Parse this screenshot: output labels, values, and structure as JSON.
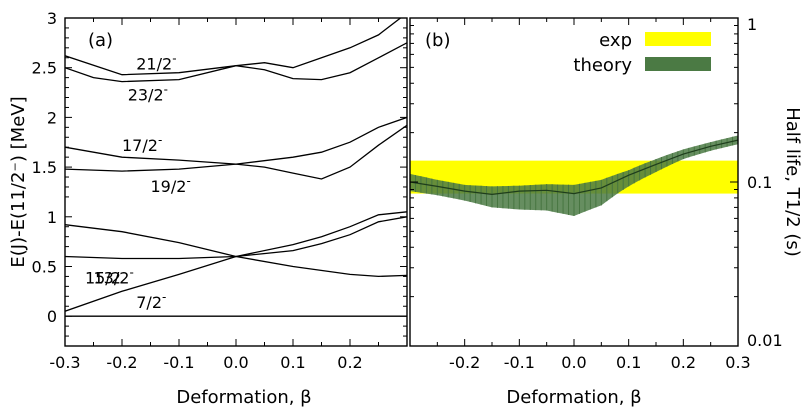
{
  "chart_data": [
    {
      "type": "line",
      "panel_label": "(a)",
      "xlabel": "Deformation, β",
      "ylabel": "E(J)-E(11/2⁻) [MeV]",
      "xlim": [
        -0.3,
        0.3
      ],
      "ylim": [
        -0.3,
        3.0
      ],
      "xticks": [
        -0.3,
        -0.2,
        -0.1,
        0.0,
        0.1,
        0.2
      ],
      "xtick_labels": [
        "-0.3",
        "-0.2",
        "-0.1",
        "0.0",
        "0.1",
        "0.2"
      ],
      "yticks": [
        0,
        0.5,
        1,
        1.5,
        2,
        2.5,
        3
      ],
      "ytick_labels": [
        "0",
        "0.5",
        "1",
        "1.5",
        "2",
        "2.5",
        "3"
      ],
      "series": [
        {
          "x": [
            -0.3,
            0.3
          ],
          "y": [
            0,
            0
          ]
        },
        {
          "x": [
            -0.3,
            -0.2,
            -0.1,
            0,
            0.1,
            0.15,
            0.2,
            0.25,
            0.3
          ],
          "y": [
            0.05,
            0.25,
            0.42,
            0.6,
            0.72,
            0.8,
            0.9,
            1.02,
            1.05
          ]
        },
        {
          "x": [
            -0.3,
            -0.2,
            -0.1,
            0,
            0.1,
            0.15,
            0.2,
            0.25,
            0.3
          ],
          "y": [
            0.6,
            0.58,
            0.58,
            0.6,
            0.66,
            0.73,
            0.82,
            0.95,
            1.0
          ]
        },
        {
          "x": [
            -0.3,
            -0.2,
            -0.1,
            0,
            0.1,
            0.2,
            0.25,
            0.3
          ],
          "y": [
            0.92,
            0.85,
            0.74,
            0.6,
            0.5,
            0.42,
            0.4,
            0.41
          ]
        },
        {
          "x": [
            -0.3,
            -0.2,
            -0.1,
            0,
            0.1,
            0.15,
            0.2,
            0.25,
            0.3
          ],
          "y": [
            1.48,
            1.46,
            1.48,
            1.53,
            1.6,
            1.65,
            1.75,
            1.9,
            2.0
          ]
        },
        {
          "x": [
            -0.3,
            -0.2,
            -0.1,
            0,
            0.05,
            0.1,
            0.15,
            0.2,
            0.25,
            0.3
          ],
          "y": [
            1.7,
            1.6,
            1.57,
            1.53,
            1.5,
            1.44,
            1.38,
            1.5,
            1.72,
            1.92
          ]
        },
        {
          "x": [
            -0.3,
            -0.25,
            -0.2,
            -0.1,
            0,
            0.05,
            0.1,
            0.15,
            0.2,
            0.25,
            0.3
          ],
          "y": [
            2.5,
            2.4,
            2.36,
            2.38,
            2.52,
            2.48,
            2.39,
            2.38,
            2.45,
            2.6,
            2.75
          ]
        },
        {
          "x": [
            -0.3,
            -0.2,
            -0.1,
            0,
            0.05,
            0.1,
            0.15,
            0.2,
            0.25,
            0.3
          ],
          "y": [
            2.62,
            2.43,
            2.45,
            2.52,
            2.55,
            2.5,
            2.6,
            2.7,
            2.83,
            3.05
          ]
        }
      ],
      "level_labels": [
        {
          "text": "21/2",
          "sup": "-",
          "x": -0.175,
          "y": 2.48
        },
        {
          "text": "23/2",
          "sup": "-",
          "x": -0.19,
          "y": 2.17
        },
        {
          "text": "17/2",
          "sup": "-",
          "x": -0.2,
          "y": 1.66
        },
        {
          "text": "19/2",
          "sup": "-",
          "x": -0.15,
          "y": 1.25
        },
        {
          "text": "13/2",
          "sup": "-",
          "x": -0.25,
          "y": 0.33
        },
        {
          "text": "15/2",
          "sup": "-",
          "x": -0.265,
          "y": 0.33
        },
        {
          "text": "7/2",
          "sup": "-",
          "x": -0.175,
          "y": 0.08
        }
      ]
    },
    {
      "type": "area",
      "panel_label": "(b)",
      "xlabel": "Deformation, β",
      "ylabel": "Half life, T1/2 (s)",
      "yscale": "log",
      "xlim": [
        -0.3,
        0.3
      ],
      "ylim": [
        0.01,
        1
      ],
      "xticks": [
        -0.2,
        -0.1,
        0.0,
        0.1,
        0.2,
        0.3
      ],
      "xtick_labels": [
        "-0.2",
        "-0.1",
        "0.0",
        "0.1",
        "0.2",
        "0.3"
      ],
      "yticks": [
        0.01,
        0.1,
        1
      ],
      "ytick_labels": [
        "0.01",
        "0.1",
        "1"
      ],
      "legend": {
        "position": "top-right",
        "entries": [
          "exp",
          "theory"
        ]
      },
      "exp_band": {
        "name": "exp",
        "y_low": 0.085,
        "y_high": 0.135,
        "color": "#ffff00"
      },
      "theory": {
        "name": "theory",
        "color": "#4b7a44",
        "x": [
          -0.3,
          -0.25,
          -0.2,
          -0.15,
          -0.1,
          -0.05,
          0.0,
          0.05,
          0.1,
          0.15,
          0.2,
          0.25,
          0.3
        ],
        "y": [
          0.1,
          0.094,
          0.088,
          0.084,
          0.088,
          0.089,
          0.085,
          0.092,
          0.11,
          0.128,
          0.148,
          0.165,
          0.18
        ],
        "y_low": [
          0.088,
          0.083,
          0.077,
          0.07,
          0.068,
          0.067,
          0.062,
          0.072,
          0.094,
          0.115,
          0.138,
          0.155,
          0.17
        ],
        "y_high": [
          0.112,
          0.103,
          0.096,
          0.094,
          0.095,
          0.097,
          0.096,
          0.103,
          0.118,
          0.138,
          0.158,
          0.175,
          0.192
        ]
      }
    }
  ]
}
